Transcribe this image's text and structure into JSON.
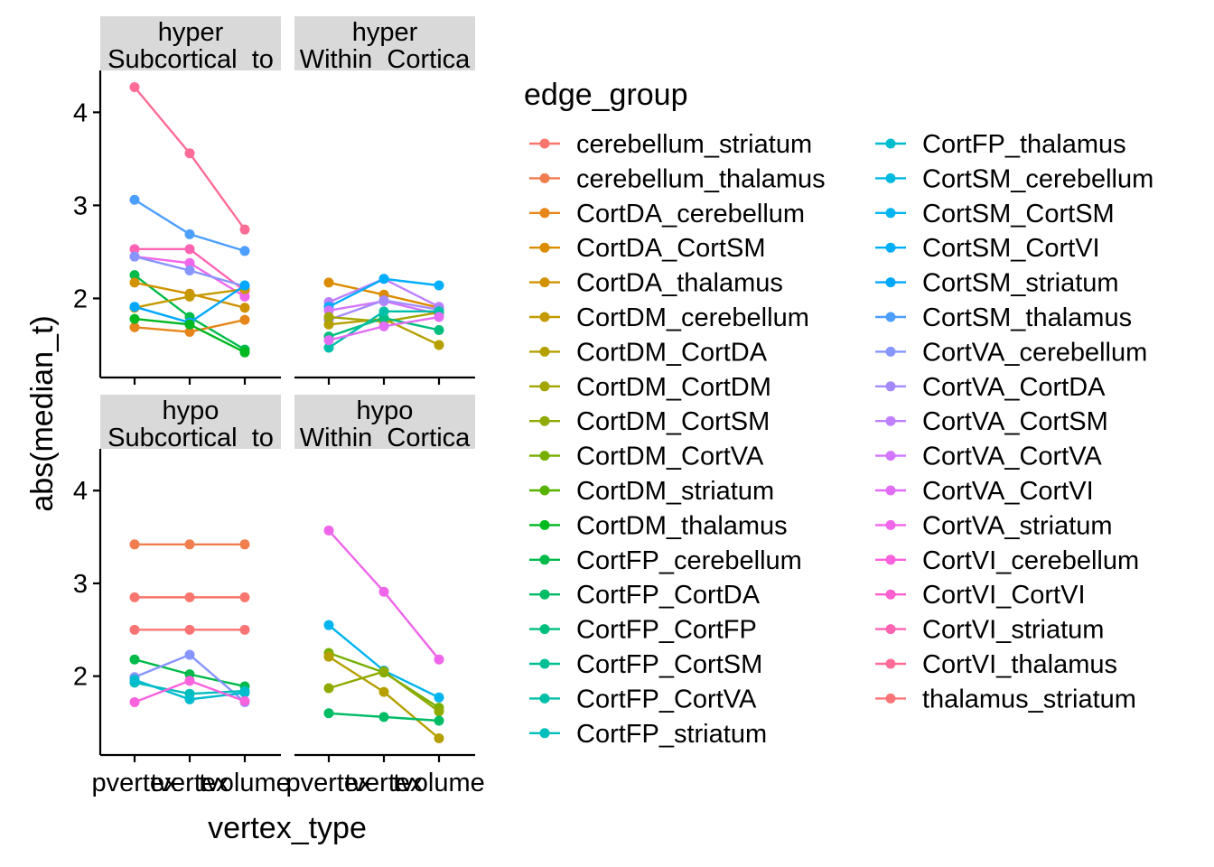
{
  "chart_data": {
    "type": "line",
    "xlabel": "vertex_type",
    "ylabel": "abs(median_t)",
    "x_categories": [
      "pvertex",
      "tvertex",
      "tvolume"
    ],
    "y_ticks": [
      2,
      3,
      4
    ],
    "ylim": [
      1.15,
      4.45
    ],
    "legend_title": "edge_group",
    "legend_position": "right",
    "grid": false,
    "series": [
      {
        "name": "cerebellum_striatum",
        "color": "#F8766D"
      },
      {
        "name": "cerebellum_thalamus",
        "color": "#F07E4F"
      },
      {
        "name": "CortDA_cerebellum",
        "color": "#E6861A"
      },
      {
        "name": "CortDA_CortSM",
        "color": "#DC8C00"
      },
      {
        "name": "CortDA_thalamus",
        "color": "#D09200"
      },
      {
        "name": "CortDM_cerebellum",
        "color": "#C49A00"
      },
      {
        "name": "CortDM_CortDA",
        "color": "#B5A000"
      },
      {
        "name": "CortDM_CortDM",
        "color": "#A3A500"
      },
      {
        "name": "CortDM_CortSM",
        "color": "#8FAA00"
      },
      {
        "name": "CortDM_CortVA",
        "color": "#77AF00"
      },
      {
        "name": "CortDM_striatum",
        "color": "#56B300"
      },
      {
        "name": "CortDM_thalamus",
        "color": "#00B81F"
      },
      {
        "name": "CortFP_cerebellum",
        "color": "#00BA4A"
      },
      {
        "name": "CortFP_CortDA",
        "color": "#00BC65"
      },
      {
        "name": "CortFP_CortFP",
        "color": "#00BE7D"
      },
      {
        "name": "CortFP_CortSM",
        "color": "#00BF93"
      },
      {
        "name": "CortFP_CortVA",
        "color": "#00BFA8"
      },
      {
        "name": "CortFP_striatum",
        "color": "#00BEBC"
      },
      {
        "name": "CortFP_thalamus",
        "color": "#00BCCF"
      },
      {
        "name": "CortSM_cerebellum",
        "color": "#00B9E1"
      },
      {
        "name": "CortSM_CortSM",
        "color": "#00B4EF"
      },
      {
        "name": "CortSM_CortVI",
        "color": "#00AEFA"
      },
      {
        "name": "CortSM_striatum",
        "color": "#00A7FF"
      },
      {
        "name": "CortSM_thalamus",
        "color": "#4C9EFF"
      },
      {
        "name": "CortVA_cerebellum",
        "color": "#8795FF"
      },
      {
        "name": "CortVA_CortDA",
        "color": "#A58AFF"
      },
      {
        "name": "CortVA_CortSM",
        "color": "#BE80FF"
      },
      {
        "name": "CortVA_CortVA",
        "color": "#D376FF"
      },
      {
        "name": "CortVA_CortVI",
        "color": "#E36EF6"
      },
      {
        "name": "CortVA_striatum",
        "color": "#F066EA"
      },
      {
        "name": "CortVI_cerebellum",
        "color": "#F962DD"
      },
      {
        "name": "CortVI_CortVI",
        "color": "#FE61CF"
      },
      {
        "name": "CortVI_striatum",
        "color": "#FF64B3"
      },
      {
        "name": "CortVI_thalamus",
        "color": "#FF6C96"
      },
      {
        "name": "thalamus_striatum",
        "color": "#FA7476"
      }
    ],
    "panels": [
      {
        "strip": [
          "hyper",
          "Subcortical_to"
        ],
        "lines": [
          {
            "series": "CortVI_thalamus",
            "values": [
              4.27,
              3.56,
              2.74
            ]
          },
          {
            "series": "CortSM_thalamus",
            "values": [
              3.06,
              2.69,
              2.51
            ]
          },
          {
            "series": "CortVI_striatum",
            "values": [
              2.53,
              2.53,
              2.08
            ]
          },
          {
            "series": "CortVA_striatum",
            "values": [
              2.45,
              2.38,
              2.02
            ]
          },
          {
            "series": "CortVA_cerebellum",
            "values": [
              2.45,
              2.3,
              2.13
            ]
          },
          {
            "series": "CortFP_cerebellum",
            "values": [
              2.25,
              1.8,
              1.45
            ]
          },
          {
            "series": "CortDA_thalamus",
            "values": [
              2.17,
              2.05,
              1.9
            ]
          },
          {
            "series": "CortDA_cerebellum",
            "values": [
              1.69,
              1.64,
              1.77
            ]
          },
          {
            "series": "CortDM_cerebellum",
            "values": [
              1.9,
              2.02,
              2.1
            ]
          },
          {
            "series": "CortSM_striatum",
            "values": [
              1.91,
              1.74,
              2.14
            ]
          },
          {
            "series": "CortDM_thalamus",
            "values": [
              1.78,
              1.72,
              1.42
            ]
          }
        ]
      },
      {
        "strip": [
          "hyper",
          "Within_Cortica"
        ],
        "lines": [
          {
            "series": "CortDA_CortSM",
            "values": [
              2.17,
              2.04,
              1.9
            ]
          },
          {
            "series": "CortVA_CortSM",
            "values": [
              1.96,
              2.21,
              1.91
            ]
          },
          {
            "series": "CortSM_CortVI",
            "values": [
              1.91,
              2.21,
              2.14
            ]
          },
          {
            "series": "CortVA_CortVA",
            "values": [
              1.87,
              1.97,
              1.83
            ]
          },
          {
            "series": "CortVA_CortDA",
            "values": [
              1.77,
              1.98,
              1.88
            ]
          },
          {
            "series": "CortDM_CortDA",
            "values": [
              1.72,
              1.78,
              1.5
            ]
          },
          {
            "series": "CortDM_CortDM",
            "values": [
              1.8,
              1.75,
              1.85
            ]
          },
          {
            "series": "CortFP_CortFP",
            "values": [
              1.59,
              1.79,
              1.66
            ]
          },
          {
            "series": "CortFP_CortVA",
            "values": [
              1.47,
              1.86,
              1.86
            ]
          },
          {
            "series": "CortVA_CortVI",
            "values": [
              1.55,
              1.7,
              1.8
            ]
          }
        ]
      },
      {
        "strip": [
          "hypo",
          "Subcortical_to"
        ],
        "lines": [
          {
            "series": "cerebellum_thalamus",
            "values": [
              3.42,
              3.42,
              3.42
            ]
          },
          {
            "series": "cerebellum_striatum",
            "values": [
              2.85,
              2.85,
              2.85
            ]
          },
          {
            "series": "thalamus_striatum",
            "values": [
              2.5,
              2.5,
              2.5
            ]
          },
          {
            "series": "CortFP_cerebellum",
            "values": [
              2.18,
              2.02,
              1.89
            ]
          },
          {
            "series": "CortVA_cerebellum",
            "values": [
              1.99,
              2.23,
              1.72
            ]
          },
          {
            "series": "CortFP_striatum",
            "values": [
              1.93,
              1.81,
              1.84
            ]
          },
          {
            "series": "CortFP_thalamus",
            "values": [
              1.96,
              1.75,
              1.82
            ]
          },
          {
            "series": "CortVI_cerebellum",
            "values": [
              1.72,
              1.95,
              1.73
            ]
          }
        ]
      },
      {
        "strip": [
          "hypo",
          "Within_Cortica"
        ],
        "lines": [
          {
            "series": "CortVA_striatum",
            "values": [
              3.57,
              2.91,
              2.18
            ]
          },
          {
            "series": "CortSM_CortSM",
            "values": [
              2.55,
              2.06,
              1.77
            ]
          },
          {
            "series": "CortDM_CortVA",
            "values": [
              2.25,
              2.04,
              1.66
            ]
          },
          {
            "series": "CortDM_CortDA",
            "values": [
              2.21,
              1.83,
              1.33
            ]
          },
          {
            "series": "CortDM_CortSM",
            "values": [
              1.87,
              2.05,
              1.62
            ]
          },
          {
            "series": "CortFP_CortDA",
            "values": [
              1.6,
              1.56,
              1.52
            ]
          }
        ]
      }
    ]
  }
}
